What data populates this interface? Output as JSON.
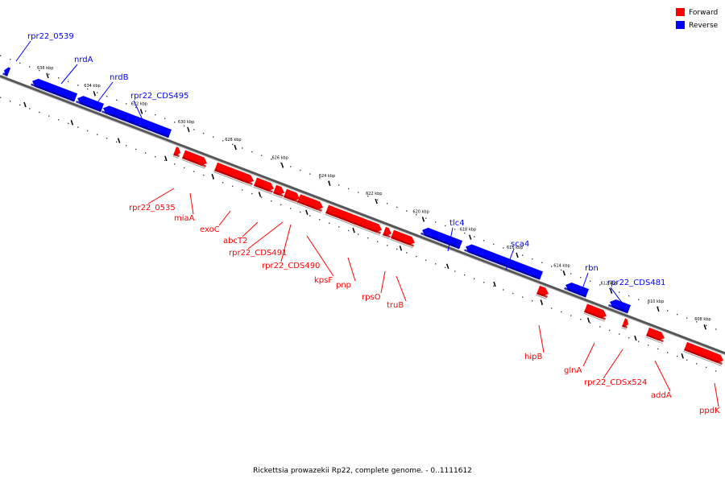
{
  "legend": {
    "forward_label": "Forward",
    "reverse_label": "Reverse",
    "forward_color": "#ff0000",
    "reverse_color": "#0000ff"
  },
  "caption": "Rickettsia prowazekii Rp22, complete genome. - 0..1111612",
  "axis": {
    "unit": "kbp",
    "ticks": [
      {
        "kbp": 636,
        "label": "636 kbp"
      },
      {
        "kbp": 634,
        "label": "634 kbp"
      },
      {
        "kbp": 632,
        "label": "632 kbp"
      },
      {
        "kbp": 630,
        "label": "630 kbp"
      },
      {
        "kbp": 628,
        "label": "628 kbp"
      },
      {
        "kbp": 626,
        "label": "626 kbp"
      },
      {
        "kbp": 624,
        "label": "624 kbp"
      },
      {
        "kbp": 622,
        "label": "622 kbp"
      },
      {
        "kbp": 620,
        "label": "620 kbp"
      },
      {
        "kbp": 618,
        "label": "618 kbp"
      },
      {
        "kbp": 616,
        "label": "616 kbp"
      },
      {
        "kbp": 614,
        "label": "614 kbp"
      },
      {
        "kbp": 612,
        "label": "612 kbp"
      },
      {
        "kbp": 610,
        "label": "610 kbp"
      },
      {
        "kbp": 608,
        "label": "608 kbp"
      }
    ]
  },
  "features": [
    {
      "name": "rpr22_0539",
      "strand": "reverse"
    },
    {
      "name": "nrdA",
      "strand": "reverse"
    },
    {
      "name": "nrdB",
      "strand": "reverse"
    },
    {
      "name": "rpr22_CDS495",
      "strand": "reverse"
    },
    {
      "name": "tlc4",
      "strand": "reverse"
    },
    {
      "name": "sca4",
      "strand": "reverse"
    },
    {
      "name": "rbn",
      "strand": "reverse"
    },
    {
      "name": "rpr22_CDS481",
      "strand": "reverse"
    },
    {
      "name": "rpr22_0535",
      "strand": "forward"
    },
    {
      "name": "miaA",
      "strand": "forward"
    },
    {
      "name": "exoC",
      "strand": "forward"
    },
    {
      "name": "abcT2",
      "strand": "forward"
    },
    {
      "name": "rpr22_CDS491",
      "strand": "forward"
    },
    {
      "name": "rpr22_CDS490",
      "strand": "forward"
    },
    {
      "name": "kpsF",
      "strand": "forward"
    },
    {
      "name": "pnp",
      "strand": "forward"
    },
    {
      "name": "rpsO",
      "strand": "forward"
    },
    {
      "name": "truB",
      "strand": "forward"
    },
    {
      "name": "hipB",
      "strand": "forward"
    },
    {
      "name": "glnA",
      "strand": "forward"
    },
    {
      "name": "rpr22_CDSx524",
      "strand": "forward"
    },
    {
      "name": "addA",
      "strand": "forward"
    },
    {
      "name": "ppdK",
      "strand": "forward"
    }
  ]
}
